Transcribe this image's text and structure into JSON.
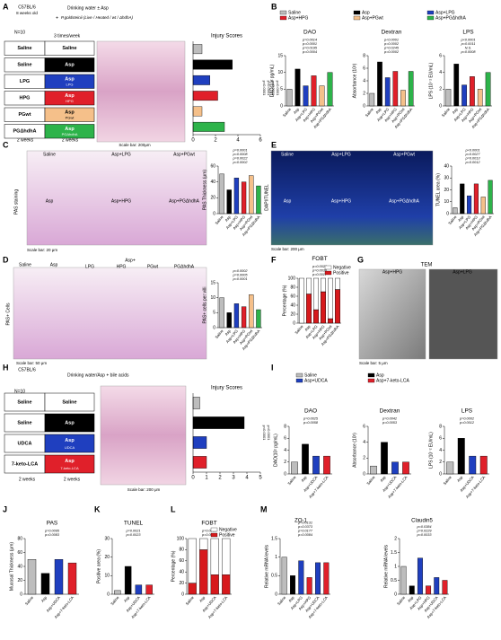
{
  "panel_letters": [
    "A",
    "B",
    "C",
    "D",
    "E",
    "F",
    "G",
    "H",
    "I",
    "J",
    "K",
    "L",
    "M"
  ],
  "captions": [
    "C57BL/6",
    "8 weeks old",
    "N=10",
    "Drinking water ± Asp",
    "+",
    "P.goldsteinii (Live / Heated / wt / ΔhdhA)",
    "3 times/week",
    "2 weeks",
    "2 weeks",
    "Scale bar: 200μm",
    "PAS staining",
    "Scale bar: 20 μm",
    "PAS+ Cells",
    "Scale bar: 50 μm",
    "DAPI/TUNEL",
    "Scale bar: 200 μm",
    "TEM",
    "Asp+HPG",
    "Asp+LPG",
    "Scale bar: 5 μm",
    "C57BL/6",
    "N=10",
    "Drinking water/Asp + bile acids",
    "2 weeks",
    "2 weeks",
    "Scale bar: 200 μm",
    "ZO-1",
    "Claudin5"
  ],
  "image_labels": [
    "Saline",
    "Asp+LPG",
    "Asp+PGwt",
    "Asp",
    "Asp+HPG",
    "Asp+PGΔhdhA",
    "Saline",
    "Asp",
    "Asp+",
    "LPG",
    "HPG",
    "PGwt",
    "PGΔhdhA",
    "Saline",
    "Asp+LPG",
    "Asp+PGwt",
    "Asp",
    "Asp+HPG",
    "Asp+PGΔhdhA"
  ],
  "a_rows": [
    {
      "left": "Saline",
      "right": "Saline",
      "color": "#ffffff"
    },
    {
      "left": "Saline",
      "right": "Asp",
      "color": "#000000"
    },
    {
      "left": "LPG",
      "right": "Asp",
      "sub": "LPG",
      "color": "#1f3fbf"
    },
    {
      "left": "HPG",
      "right": "Asp",
      "sub": "HPG",
      "color": "#e0202a"
    },
    {
      "left": "PGwt",
      "right": "Asp",
      "sub": "PGwt",
      "color": "#f5c08a"
    },
    {
      "left": "PGΔhdhA",
      "right": "Asp",
      "sub": "PGΔhdhA",
      "color": "#2db34a"
    }
  ],
  "h_rows": [
    {
      "left": "Saline",
      "right": "Saline",
      "color": "#ffffff"
    },
    {
      "left": "Saline",
      "right": "Asp",
      "color": "#000000"
    },
    {
      "left": "UDCA",
      "right": "Asp",
      "sub": "UDCA",
      "color": "#1f3fbf"
    },
    {
      "left": "7-keto-LCA",
      "right": "Asp",
      "sub": "7-keto-LCA",
      "color": "#e0202a"
    }
  ],
  "chart_data": [
    {
      "type": "hbar",
      "title": "Injury Scores",
      "values": [
        0.8,
        3.5,
        1.5,
        2.2,
        0.8,
        2.8
      ],
      "colors": [
        "#bdbdbd",
        "#000000",
        "#1f3fbf",
        "#e0202a",
        "#f5c08a",
        "#2db34a"
      ],
      "xlim": [
        0,
        6
      ],
      "xticks": [
        0,
        2,
        4,
        6
      ],
      "annotations": [
        "p<0.0001",
        "p<0.0001",
        "p<0.0001",
        "p=0.0001"
      ]
    },
    {
      "type": "bar",
      "title": "DAO",
      "ylabel": "DAO(10² pg/mL)",
      "categories": [
        "Saline",
        "Asp",
        "Asp+LPG",
        "Asp+HPG",
        "Asp+PGwt",
        "Asp+PGΔhdhA"
      ],
      "values": [
        5,
        11,
        6,
        9,
        6,
        10
      ],
      "colors": [
        "#bdbdbd",
        "#000000",
        "#1f3fbf",
        "#e0202a",
        "#f5c08a",
        "#2db34a"
      ],
      "ylim": [
        0,
        15
      ],
      "yticks": [
        0,
        5,
        10,
        15
      ],
      "legend": "top",
      "annotations": [
        "p=0.0014",
        "p=0.0001",
        "p=0.0195",
        "p=0.0004"
      ]
    },
    {
      "type": "bar",
      "title": "Dextran",
      "ylabel": "Absorbance (10²)",
      "categories": [
        "Saline",
        "Asp",
        "Asp+LPG",
        "Asp+HPG",
        "Asp+PGwt",
        "Asp+PGΔhdhA"
      ],
      "values": [
        2,
        7,
        4.5,
        5.5,
        2.5,
        5.5
      ],
      "colors": [
        "#bdbdbd",
        "#000000",
        "#1f3fbf",
        "#e0202a",
        "#f5c08a",
        "#2db34a"
      ],
      "ylim": [
        0,
        8
      ],
      "yticks": [
        0,
        2,
        4,
        6,
        8
      ],
      "annotations": [
        "p<0.0001",
        "p=0.0002",
        "p=0.0245",
        "p=0.0002"
      ]
    },
    {
      "type": "bar",
      "title": "LPS",
      "ylabel": "LPS (10⁻² EU/mL)",
      "categories": [
        "Saline",
        "Asp",
        "Asp+LPG",
        "Asp+HPG",
        "Asp+PGwt",
        "Asp+PGΔhdhA"
      ],
      "values": [
        2,
        5,
        2.5,
        3.5,
        2,
        4
      ],
      "colors": [
        "#bdbdbd",
        "#000000",
        "#1f3fbf",
        "#e0202a",
        "#f5c08a",
        "#2db34a"
      ],
      "ylim": [
        0,
        6
      ],
      "yticks": [
        0,
        2,
        4,
        6
      ],
      "annotations": [
        "p<0.0001",
        "p=0.0011",
        "N.S.",
        "p=0.0008"
      ]
    },
    {
      "type": "bar",
      "ylabel": "PAS Thickness (μm)",
      "categories": [
        "Saline",
        "Asp",
        "Asp+LPG",
        "Asp+HPG",
        "Asp+PGwt",
        "Asp+PGΔhdhA"
      ],
      "values": [
        50,
        30,
        45,
        40,
        48,
        35
      ],
      "colors": [
        "#bdbdbd",
        "#000000",
        "#1f3fbf",
        "#e0202a",
        "#f5c08a",
        "#2db34a"
      ],
      "ylim": [
        0,
        60
      ],
      "yticks": [
        0,
        20,
        40,
        60
      ],
      "annotations": [
        "p=0.0001",
        "p=0.0008",
        "p=0.0022",
        "p=0.0002"
      ]
    },
    {
      "type": "bar",
      "ylabel": "TUNEL area (%)",
      "categories": [
        "Saline",
        "Asp",
        "Asp+LPG",
        "Asp+HPG",
        "Asp+PGwt",
        "Asp+PGΔhdhA"
      ],
      "values": [
        5,
        25,
        15,
        25,
        14,
        28
      ],
      "colors": [
        "#bdbdbd",
        "#000000",
        "#1f3fbf",
        "#e0202a",
        "#f5c08a",
        "#2db34a"
      ],
      "ylim": [
        0,
        40
      ],
      "yticks": [
        0,
        10,
        20,
        30,
        40
      ],
      "annotations": [
        "p<0.0001",
        "p=0.0027",
        "p=0.0013",
        "p=0.0012"
      ]
    },
    {
      "type": "bar",
      "ylabel": "PAS+ cells per villi",
      "categories": [
        "Saline",
        "Asp",
        "Asp+LPG",
        "Asp+HPG",
        "Asp+PGwt",
        "Asp+PGΔhdhA"
      ],
      "values": [
        10,
        5,
        8,
        7,
        11,
        6
      ],
      "colors": [
        "#bdbdbd",
        "#000000",
        "#1f3fbf",
        "#e0202a",
        "#f5c08a",
        "#2db34a"
      ],
      "ylim": [
        0,
        15
      ],
      "yticks": [
        0,
        5,
        10,
        15
      ],
      "annotations": [
        "p=0.0002",
        "p=0.0005",
        "p=0.0001"
      ]
    },
    {
      "type": "stacked_bar",
      "title": "FOBT",
      "ylabel": "Percentage (%)",
      "categories": [
        "Saline",
        "Asp",
        "Asp+LPG",
        "Asp+HPG",
        "Asp+PGwt",
        "Asp+PGΔhdhA"
      ],
      "series": [
        {
          "name": "Positive",
          "color": "#d7191c",
          "values": [
            0,
            65,
            30,
            70,
            10,
            75
          ]
        },
        {
          "name": "Negative",
          "color": "#ffffff",
          "values": [
            100,
            35,
            70,
            30,
            90,
            25
          ]
        }
      ],
      "ylim": [
        0,
        100
      ],
      "yticks": [
        0,
        20,
        40,
        60,
        80,
        100
      ],
      "annotations": [
        "p=0.0026",
        "p=0.0036",
        "p=0.0017"
      ]
    },
    {
      "type": "hbar",
      "title": "Injury Scores",
      "values": [
        0.5,
        3.8,
        1.0,
        1.0
      ],
      "colors": [
        "#bdbdbd",
        "#000000",
        "#1f3fbf",
        "#e0202a"
      ],
      "xlim": [
        0,
        5
      ],
      "xticks": [
        0,
        1,
        2,
        3,
        4,
        5
      ],
      "annotations": [
        "p<0.0001",
        "p<0.0001"
      ]
    },
    {
      "type": "bar",
      "title": "DAO",
      "ylabel": "DAO(10² pg/mL)",
      "categories": [
        "Saline",
        "Asp",
        "Asp+UDCA",
        "Asp+7-keto-LCA"
      ],
      "values": [
        2,
        5,
        3,
        3
      ],
      "colors": [
        "#bdbdbd",
        "#000000",
        "#1f3fbf",
        "#e0202a"
      ],
      "ylim": [
        0,
        8
      ],
      "yticks": [
        0,
        2,
        4,
        6,
        8
      ],
      "legend": "top",
      "annotations": [
        "p=0.0025",
        "p=0.0058"
      ]
    },
    {
      "type": "bar",
      "title": "Dextran",
      "ylabel": "Absorbance (10²)",
      "categories": [
        "Saline",
        "Asp",
        "Asp+UDCA",
        "Asp+7-keto-LCA"
      ],
      "values": [
        1,
        4,
        1.5,
        1.5
      ],
      "colors": [
        "#bdbdbd",
        "#000000",
        "#1f3fbf",
        "#e0202a"
      ],
      "ylim": [
        0,
        6
      ],
      "yticks": [
        0,
        2,
        4,
        6
      ],
      "annotations": [
        "p=0.0042",
        "p=0.0053"
      ]
    },
    {
      "type": "bar",
      "title": "LPS",
      "ylabel": "LPS (10⁻² EU/mL)",
      "categories": [
        "Saline",
        "Asp",
        "Asp+UDCA",
        "Asp+7-keto-LCA"
      ],
      "values": [
        2,
        6,
        3,
        3
      ],
      "colors": [
        "#bdbdbd",
        "#000000",
        "#1f3fbf",
        "#e0202a"
      ],
      "ylim": [
        0,
        8
      ],
      "yticks": [
        0,
        2,
        4,
        6,
        8
      ],
      "annotations": [
        "p=0.0002",
        "p=0.0012"
      ]
    },
    {
      "type": "bar",
      "title": "PAS",
      "ylabel": "Mucosal Thickness (μm)",
      "categories": [
        "Saline",
        "Asp",
        "Asp+UDCA",
        "Asp+7-keto-LCA"
      ],
      "values": [
        50,
        30,
        50,
        45
      ],
      "colors": [
        "#bdbdbd",
        "#000000",
        "#1f3fbf",
        "#e0202a"
      ],
      "ylim": [
        0,
        80
      ],
      "yticks": [
        0,
        20,
        40,
        60,
        80
      ],
      "annotations": [
        "p=0.0095",
        "p=0.0083"
      ]
    },
    {
      "type": "bar",
      "title": "TUNEL",
      "ylabel": "Positive area (%)",
      "categories": [
        "Saline",
        "Asp",
        "Asp+UDCA",
        "Asp+7-keto-LCA"
      ],
      "values": [
        2,
        15,
        5,
        5
      ],
      "colors": [
        "#bdbdbd",
        "#000000",
        "#1f3fbf",
        "#e0202a"
      ],
      "ylim": [
        0,
        30
      ],
      "yticks": [
        0,
        10,
        20,
        30
      ],
      "annotations": [
        "p=0.0021",
        "p=0.0023"
      ]
    },
    {
      "type": "stacked_bar",
      "title": "FOBT",
      "ylabel": "Percentage (%)",
      "categories": [
        "Saline",
        "Asp",
        "Asp+UDCA",
        "Asp+7-keto-LCA"
      ],
      "series": [
        {
          "name": "Positive",
          "color": "#d7191c",
          "values": [
            20,
            80,
            35,
            35
          ]
        },
        {
          "name": "Negative",
          "color": "#ffffff",
          "values": [
            80,
            20,
            65,
            65
          ]
        }
      ],
      "ylim": [
        0,
        100
      ],
      "yticks": [
        0,
        20,
        40,
        60,
        80,
        100
      ],
      "annotations": [
        "p=0.0253",
        "p=0.0092"
      ]
    },
    {
      "type": "bar",
      "ylabel": "Relative mRNA levels",
      "categories": [
        "Saline",
        "Asp",
        "Asp+LPG",
        "Asp+HPG",
        "Asp+UDCA",
        "Asp+7-keto-LCA"
      ],
      "values": [
        1.0,
        0.5,
        0.9,
        0.45,
        0.85,
        0.85
      ],
      "colors": [
        "#bdbdbd",
        "#000000",
        "#1f3fbf",
        "#e0202a",
        "#1f3fbf",
        "#e0202a"
      ],
      "ylim": [
        0,
        1.5
      ],
      "yticks": [
        0,
        0.5,
        1,
        1.5
      ],
      "annotations": [
        "p=0.0131",
        "p=0.0373",
        "p=0.0177",
        "p=0.0084"
      ]
    },
    {
      "type": "bar",
      "ylabel": "Relative mRNA levels",
      "categories": [
        "Saline",
        "Asp",
        "Asp+LPG",
        "Asp+HPG",
        "Asp+UDCA",
        "Asp+7-keto-LCA"
      ],
      "values": [
        1,
        0.3,
        1.3,
        0.3,
        0.6,
        0.5
      ],
      "colors": [
        "#bdbdbd",
        "#000000",
        "#1f3fbf",
        "#e0202a",
        "#1f3fbf",
        "#e0202a"
      ],
      "ylim": [
        0,
        2
      ],
      "yticks": [
        0,
        0.5,
        1,
        1.5,
        2
      ],
      "annotations": [
        "p=0.0384",
        "p=0.0229",
        "p=0.0033"
      ]
    }
  ]
}
